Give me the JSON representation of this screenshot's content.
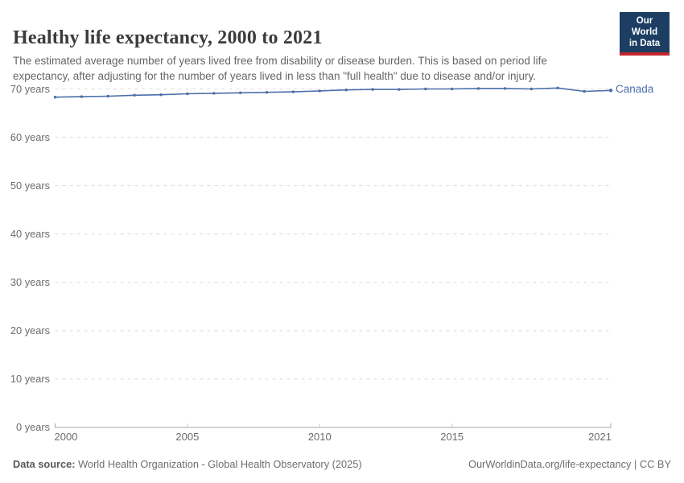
{
  "header": {
    "title": "Healthy life expectancy, 2000 to 2021",
    "subtitle": "The estimated average number of years lived free from disability or disease burden. This is based on period life expectancy, after adjusting for the number of years lived in less than \"full health\" due to disease and/or injury.",
    "logo": {
      "line1": "Our World",
      "line2": "in Data"
    }
  },
  "chart_data": {
    "type": "line",
    "title": "Healthy life expectancy, 2000 to 2021",
    "xlabel": "",
    "ylabel": "years",
    "xlim": [
      2000,
      2021
    ],
    "ylim": [
      0,
      70
    ],
    "grid": "horizontal-dashed",
    "legend_position": "end-of-line-label",
    "x": [
      2000,
      2001,
      2002,
      2003,
      2004,
      2005,
      2006,
      2007,
      2008,
      2009,
      2010,
      2011,
      2012,
      2013,
      2014,
      2015,
      2016,
      2017,
      2018,
      2019,
      2020,
      2021
    ],
    "series": [
      {
        "name": "Canada",
        "values": [
          68.3,
          68.4,
          68.5,
          68.7,
          68.8,
          69.0,
          69.1,
          69.2,
          69.3,
          69.4,
          69.6,
          69.8,
          69.9,
          69.9,
          70.0,
          70.0,
          70.1,
          70.1,
          70.0,
          70.2,
          69.5,
          69.7
        ]
      }
    ],
    "end_label": "Canada",
    "yticks": [
      {
        "value": 70,
        "label": "70 years"
      },
      {
        "value": 60,
        "label": "60 years"
      },
      {
        "value": 50,
        "label": "50 years"
      },
      {
        "value": 40,
        "label": "40 years"
      },
      {
        "value": 30,
        "label": "30 years"
      },
      {
        "value": 20,
        "label": "20 years"
      },
      {
        "value": 10,
        "label": "10 years"
      },
      {
        "value": 0,
        "label": "0 years"
      }
    ],
    "xticks": [
      {
        "value": 2000,
        "label": "2000",
        "align": "left"
      },
      {
        "value": 2005,
        "label": "2005",
        "align": "center"
      },
      {
        "value": 2010,
        "label": "2010",
        "align": "center"
      },
      {
        "value": 2015,
        "label": "2015",
        "align": "center"
      },
      {
        "value": 2021,
        "label": "2021",
        "align": "right"
      }
    ]
  },
  "footer": {
    "source_label": "Data source:",
    "source_text": " World Health Organization - Global Health Observatory (2025)",
    "credit": "OurWorldinData.org/life-expectancy | CC BY"
  },
  "colors": {
    "line": "#4c6ea9",
    "grid": "#dcdcdc",
    "axis": "#a5a5a5",
    "minor_tick": "#c8c8c8",
    "logo_bg": "#1d3d63",
    "logo_stripe": "#c3262f"
  }
}
